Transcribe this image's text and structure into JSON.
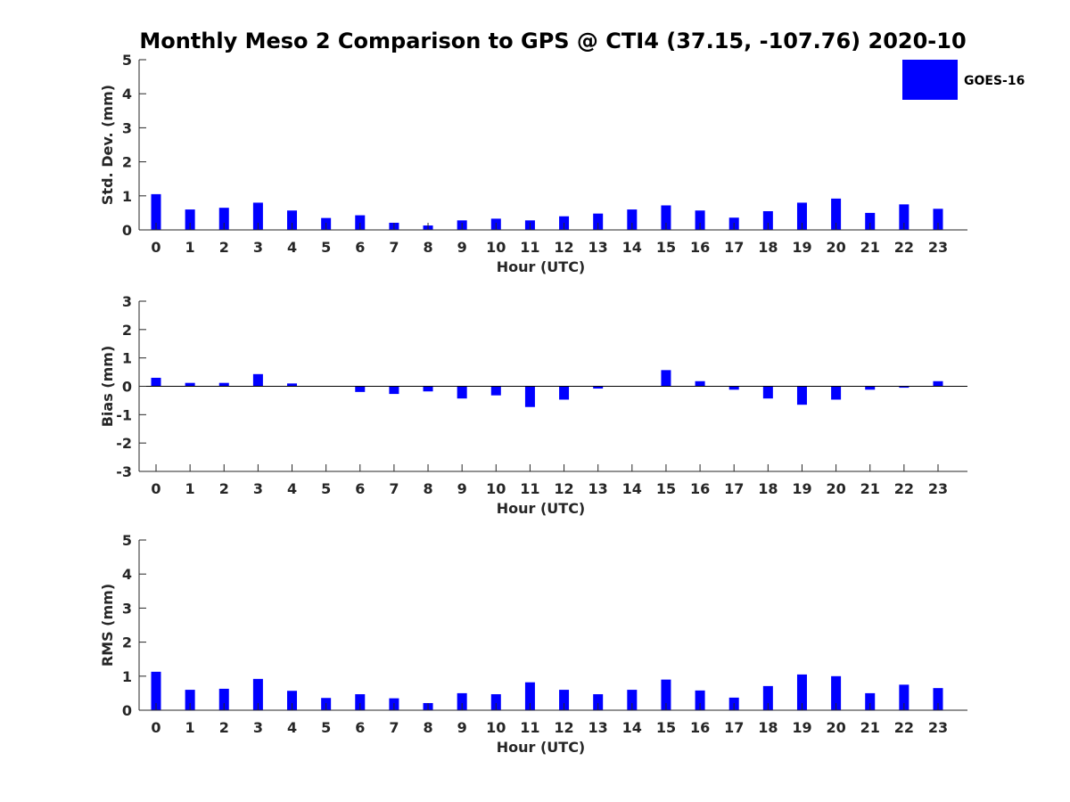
{
  "title": "Monthly Meso 2 Comparison to GPS @ CTI4 (37.15, -107.76) 2020-10",
  "colors": {
    "bar": "#0000ff",
    "axis": "#262626",
    "background": "#ffffff"
  },
  "legend": {
    "label": "GOES-16",
    "placement": "top-right"
  },
  "chart_data": [
    {
      "type": "bar",
      "xlabel": "Hour (UTC)",
      "ylabel": "Std. Dev. (mm)",
      "ylim": [
        0,
        5
      ],
      "yticks": [
        0,
        1,
        2,
        3,
        4,
        5
      ],
      "categories": [
        0,
        1,
        2,
        3,
        4,
        5,
        6,
        7,
        8,
        9,
        10,
        11,
        12,
        13,
        14,
        15,
        16,
        17,
        18,
        19,
        20,
        21,
        22,
        23
      ],
      "series": [
        {
          "name": "GOES-16",
          "values": [
            1.05,
            0.6,
            0.65,
            0.8,
            0.57,
            0.35,
            0.43,
            0.21,
            0.13,
            0.28,
            0.33,
            0.28,
            0.4,
            0.48,
            0.6,
            0.72,
            0.57,
            0.36,
            0.55,
            0.8,
            0.92,
            0.5,
            0.75,
            0.62
          ]
        }
      ],
      "grid": false
    },
    {
      "type": "bar",
      "xlabel": "Hour (UTC)",
      "ylabel": "Bias (mm)",
      "ylim": [
        -3,
        3
      ],
      "yticks": [
        -3,
        -2,
        -1,
        0,
        1,
        2,
        3
      ],
      "categories": [
        0,
        1,
        2,
        3,
        4,
        5,
        6,
        7,
        8,
        9,
        10,
        11,
        12,
        13,
        14,
        15,
        16,
        17,
        18,
        19,
        20,
        21,
        22,
        23
      ],
      "series": [
        {
          "name": "GOES-16",
          "values": [
            0.3,
            0.12,
            0.12,
            0.43,
            0.1,
            0.0,
            -0.2,
            -0.27,
            -0.18,
            -0.43,
            -0.32,
            -0.73,
            -0.47,
            -0.08,
            0.0,
            0.57,
            0.18,
            -0.12,
            -0.43,
            -0.65,
            -0.47,
            -0.12,
            -0.05,
            0.18
          ]
        }
      ],
      "grid": false
    },
    {
      "type": "bar",
      "xlabel": "Hour (UTC)",
      "ylabel": "RMS (mm)",
      "ylim": [
        0,
        5
      ],
      "yticks": [
        0,
        1,
        2,
        3,
        4,
        5
      ],
      "categories": [
        0,
        1,
        2,
        3,
        4,
        5,
        6,
        7,
        8,
        9,
        10,
        11,
        12,
        13,
        14,
        15,
        16,
        17,
        18,
        19,
        20,
        21,
        22,
        23
      ],
      "series": [
        {
          "name": "GOES-16",
          "values": [
            1.13,
            0.6,
            0.63,
            0.92,
            0.57,
            0.36,
            0.47,
            0.35,
            0.21,
            0.5,
            0.47,
            0.82,
            0.6,
            0.47,
            0.6,
            0.9,
            0.58,
            0.37,
            0.71,
            1.05,
            1.0,
            0.5,
            0.75,
            0.65
          ]
        }
      ],
      "grid": false
    }
  ]
}
